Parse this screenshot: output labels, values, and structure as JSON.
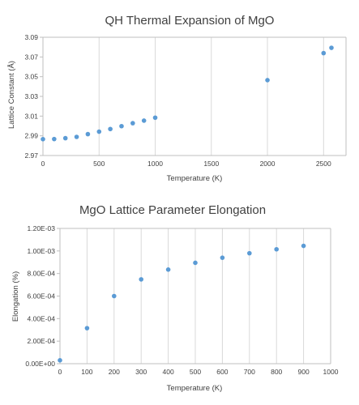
{
  "chart_data": [
    {
      "type": "scatter",
      "title": "QH Thermal Expansion of MgO",
      "xlabel": "Temperature  (K)",
      "ylabel": "Lattice  Constant  (Å)",
      "xlim": [
        0,
        2700
      ],
      "ylim": [
        2.97,
        3.09
      ],
      "x_ticks": [
        "0",
        "500",
        "1000",
        "1500",
        "2000",
        "2500"
      ],
      "x_tick_values": [
        0,
        500,
        1000,
        1500,
        2000,
        2500
      ],
      "y_ticks": [
        "2.97",
        "2.99",
        "3.01",
        "3.03",
        "3.05",
        "3.07",
        "3.09"
      ],
      "y_tick_values": [
        2.97,
        2.99,
        3.01,
        3.03,
        3.05,
        3.07,
        3.09
      ],
      "grid": "vertical",
      "color": "#5b9bd5",
      "x": [
        0,
        100,
        200,
        300,
        400,
        500,
        600,
        700,
        800,
        900,
        1000,
        2000,
        2500,
        2570
      ],
      "y": [
        2.9866,
        2.9867,
        2.9876,
        2.9889,
        2.9917,
        2.9942,
        2.9969,
        2.9998,
        3.0028,
        3.0054,
        3.0084,
        3.0465,
        3.0739,
        3.0793
      ]
    },
    {
      "type": "scatter",
      "title": "MgO Lattice Parameter Elongation",
      "xlabel": "Temperature  (K)",
      "ylabel": "Elongation (%)",
      "xlim": [
        0,
        1000
      ],
      "ylim": [
        0,
        0.0012
      ],
      "x_ticks": [
        "0",
        "100",
        "200",
        "300",
        "400",
        "500",
        "600",
        "700",
        "800",
        "900",
        "1000"
      ],
      "x_tick_values": [
        0,
        100,
        200,
        300,
        400,
        500,
        600,
        700,
        800,
        900,
        1000
      ],
      "y_ticks": [
        "0.00E+00",
        "2.00E-04",
        "4.00E-04",
        "6.00E-04",
        "8.00E-04",
        "1.00E-03",
        "1.20E-03"
      ],
      "y_tick_values": [
        0,
        0.0002,
        0.0004,
        0.0006,
        0.0008,
        0.001,
        0.0012
      ],
      "grid": "vertical",
      "color": "#5b9bd5",
      "x": [
        0,
        100,
        200,
        300,
        400,
        500,
        600,
        700,
        800,
        900
      ],
      "y": [
        3e-05,
        0.000315,
        0.0006,
        0.000748,
        0.000835,
        0.000895,
        0.00094,
        0.00098,
        0.001015,
        0.001045
      ]
    }
  ]
}
